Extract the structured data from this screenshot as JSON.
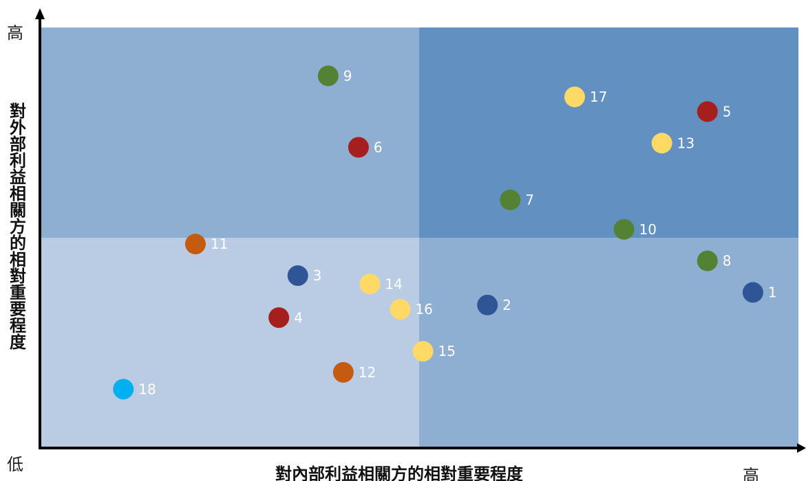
{
  "chart_data": {
    "type": "scatter",
    "xlabel": "對內部利益相關方的相對重要程度",
    "ylabel": "對外部利益相關方的相對重要程度",
    "y_high_label": "高",
    "y_low_label": "低",
    "x_high_label": "高",
    "xlim": [
      0,
      100
    ],
    "ylim": [
      0,
      100
    ],
    "quadrant_split": {
      "x": 50,
      "y": 50
    },
    "quadrant_colors": {
      "top_left": "#8eaed2",
      "top_right": "#6190c1",
      "bottom_left": "#bacce3",
      "bottom_right": "#8eaed2"
    },
    "axis_color": "#000000",
    "points": [
      {
        "label": "1",
        "x": 94.0,
        "y": 37.0,
        "color": "#2f5597"
      },
      {
        "label": "2",
        "x": 59.0,
        "y": 34.0,
        "color": "#2f5597"
      },
      {
        "label": "3",
        "x": 34.0,
        "y": 41.0,
        "color": "#2f5597"
      },
      {
        "label": "4",
        "x": 31.5,
        "y": 31.0,
        "color": "#a51f1f"
      },
      {
        "label": "5",
        "x": 88.0,
        "y": 80.0,
        "color": "#a51f1f"
      },
      {
        "label": "6",
        "x": 42.0,
        "y": 71.5,
        "color": "#a51f1f"
      },
      {
        "label": "7",
        "x": 62.0,
        "y": 59.0,
        "color": "#548235"
      },
      {
        "label": "8",
        "x": 88.0,
        "y": 44.5,
        "color": "#548235"
      },
      {
        "label": "9",
        "x": 38.0,
        "y": 88.5,
        "color": "#548235"
      },
      {
        "label": "10",
        "x": 77.0,
        "y": 52.0,
        "color": "#548235"
      },
      {
        "label": "11",
        "x": 20.5,
        "y": 48.5,
        "color": "#c55a11"
      },
      {
        "label": "12",
        "x": 40.0,
        "y": 18.0,
        "color": "#c55a11"
      },
      {
        "label": "13",
        "x": 82.0,
        "y": 72.5,
        "color": "#ffd966"
      },
      {
        "label": "14",
        "x": 43.5,
        "y": 39.0,
        "color": "#ffd966"
      },
      {
        "label": "15",
        "x": 50.5,
        "y": 23.0,
        "color": "#ffd966"
      },
      {
        "label": "16",
        "x": 47.5,
        "y": 33.0,
        "color": "#ffd966"
      },
      {
        "label": "17",
        "x": 70.5,
        "y": 83.5,
        "color": "#ffd966"
      },
      {
        "label": "18",
        "x": 11.0,
        "y": 14.0,
        "color": "#00b0f0"
      }
    ]
  }
}
